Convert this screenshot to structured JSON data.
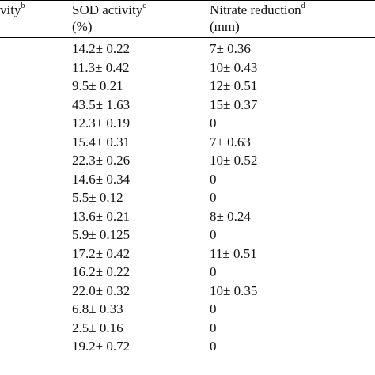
{
  "header": {
    "col1_text": "vity",
    "col1_sup": "b",
    "col2_text": "SOD activity",
    "col2_sup": "c",
    "col2_unit": "(%)",
    "col3_text": "Nitrate reduction",
    "col3_sup": "d",
    "col3_unit": "(mm)"
  },
  "rows": [
    {
      "sod": "14.2± 0.22",
      "nitrate": "7± 0.36"
    },
    {
      "sod": "11.3± 0.42",
      "nitrate": "10± 0.43"
    },
    {
      "sod": "9.5± 0.21",
      "nitrate": "12± 0.51"
    },
    {
      "sod": "43.5± 1.63",
      "nitrate": "15± 0.37"
    },
    {
      "sod": "12.3± 0.19",
      "nitrate": "0"
    },
    {
      "sod": "15.4± 0.31",
      "nitrate": "7± 0.63"
    },
    {
      "sod": "22.3± 0.26",
      "nitrate": "10± 0.52"
    },
    {
      "sod": "14.6± 0.34",
      "nitrate": "0"
    },
    {
      "sod": "5.5± 0.12",
      "nitrate": "0"
    },
    {
      "sod": "13.6± 0.21",
      "nitrate": "8± 0.24"
    },
    {
      "sod": "5.9± 0.125",
      "nitrate": "0"
    },
    {
      "sod": "17.2± 0.42",
      "nitrate": "11± 0.51"
    },
    {
      "sod": "16.2± 0.22",
      "nitrate": "0"
    },
    {
      "sod": "22.0± 0.32",
      "nitrate": "10± 0.35"
    },
    {
      "sod": "6.8± 0.33",
      "nitrate": "0"
    },
    {
      "sod": "2.5± 0.16",
      "nitrate": "0"
    },
    {
      "sod": "19.2± 0.72",
      "nitrate": "0"
    }
  ]
}
